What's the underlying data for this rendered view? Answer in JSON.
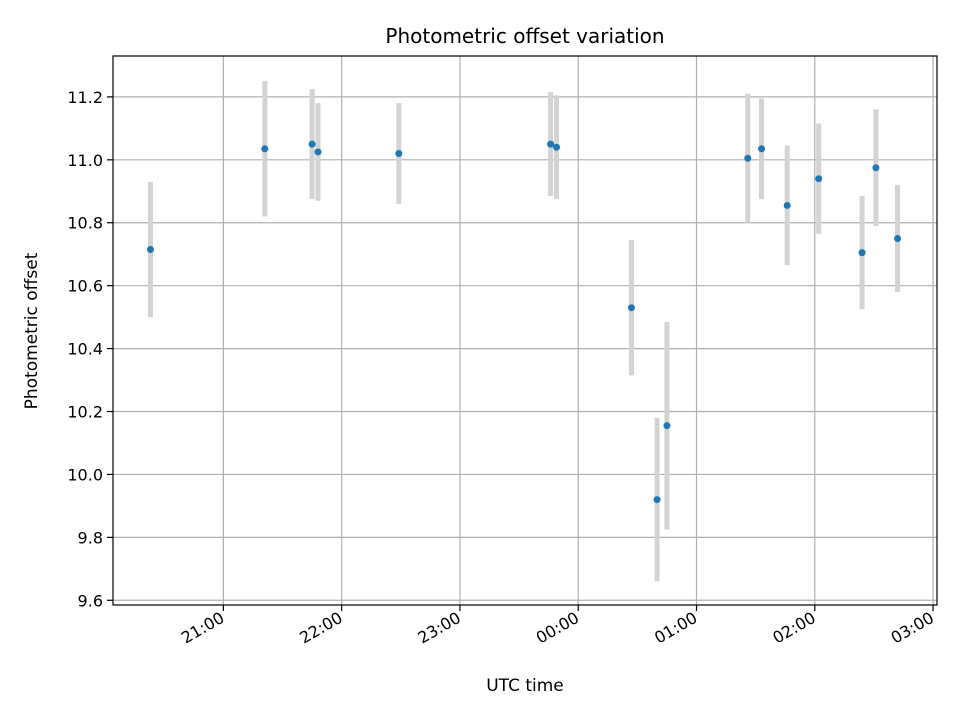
{
  "chart_data": {
    "type": "scatter",
    "title": "Photometric offset variation",
    "xlabel": "UTC time",
    "ylabel": "Photometric offset",
    "x_axis_type": "time",
    "xlim": [
      "20:04",
      "03:02"
    ],
    "ylim": [
      9.585,
      11.33
    ],
    "xticks": [
      "21:00",
      "22:00",
      "23:00",
      "00:00",
      "01:00",
      "02:00",
      "03:00"
    ],
    "yticks": [
      9.6,
      9.8,
      10.0,
      10.2,
      10.4,
      10.6,
      10.8,
      11.0,
      11.2
    ],
    "grid": true,
    "marker_color": "#1f77b4",
    "errorbar_color": "#d3d3d3",
    "points": [
      {
        "x": "20:23",
        "y": 10.715,
        "err": 0.215
      },
      {
        "x": "21:21",
        "y": 11.035,
        "err": 0.215
      },
      {
        "x": "21:45",
        "y": 11.05,
        "err": 0.175
      },
      {
        "x": "21:48",
        "y": 11.025,
        "err": 0.155
      },
      {
        "x": "22:29",
        "y": 11.02,
        "err": 0.16
      },
      {
        "x": "23:46",
        "y": 11.05,
        "err": 0.165
      },
      {
        "x": "23:49",
        "y": 11.04,
        "err": 0.165
      },
      {
        "x": "00:27",
        "y": 10.53,
        "err": 0.215
      },
      {
        "x": "00:40",
        "y": 9.92,
        "err": 0.26
      },
      {
        "x": "00:45",
        "y": 10.155,
        "err": 0.33
      },
      {
        "x": "01:26",
        "y": 11.005,
        "err": 0.205
      },
      {
        "x": "01:33",
        "y": 11.035,
        "err": 0.16
      },
      {
        "x": "01:46",
        "y": 10.855,
        "err": 0.19
      },
      {
        "x": "02:02",
        "y": 10.94,
        "err": 0.175
      },
      {
        "x": "02:24",
        "y": 10.705,
        "err": 0.18
      },
      {
        "x": "02:31",
        "y": 10.975,
        "err": 0.185
      },
      {
        "x": "02:42",
        "y": 10.75,
        "err": 0.17
      }
    ]
  }
}
